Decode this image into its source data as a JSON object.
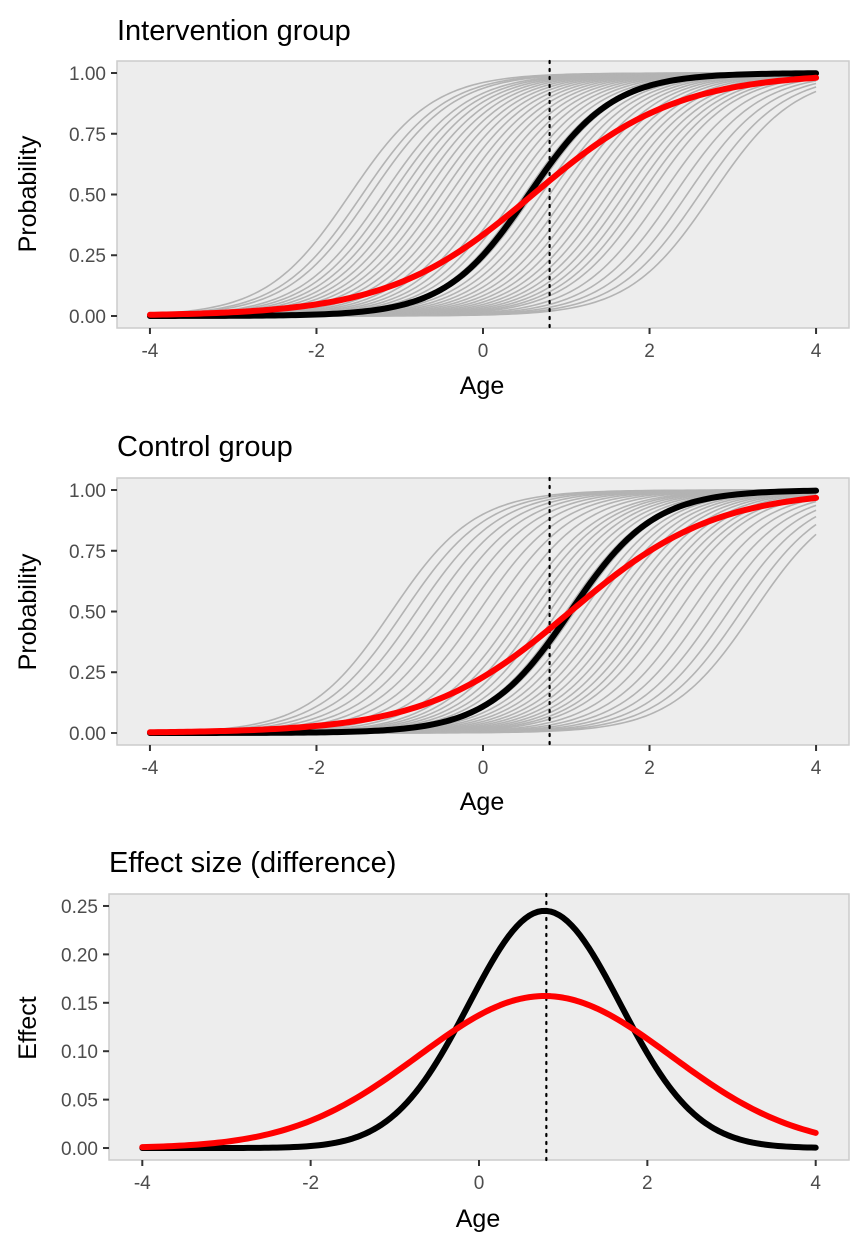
{
  "colors": {
    "panel_background": "#ededed",
    "ensemble": "#b3b3b3",
    "black_series": "#000000",
    "red_series": "#ff0000",
    "reference_line": "#000000"
  },
  "chart_data": [
    {
      "type": "line",
      "title": "Intervention group",
      "xlabel": "Age",
      "ylabel": "Probability",
      "xlim": [
        -4,
        4
      ],
      "ylim": [
        0,
        1
      ],
      "x_ticks": [
        -4,
        -2,
        0,
        2,
        4
      ],
      "x_tick_labels": [
        "-4",
        "-2",
        "0",
        "2",
        "4"
      ],
      "y_ticks": [
        0,
        0.25,
        0.5,
        0.75,
        1
      ],
      "y_tick_labels": [
        "0.00",
        "0.25",
        "0.50",
        "0.75",
        "1.00"
      ],
      "reference_x": 0.8,
      "grid": false,
      "curve": "logistic",
      "series": [
        {
          "role": "black",
          "center": 0.55,
          "slope": 2.0
        },
        {
          "role": "red",
          "center": 0.6,
          "slope": 1.15
        }
      ],
      "ensemble": {
        "slope": 2.0,
        "centers": [
          -1.6,
          -1.45,
          -1.35,
          -1.2,
          -1.1,
          -1.0,
          -0.9,
          -0.8,
          -0.7,
          -0.6,
          -0.5,
          -0.4,
          -0.3,
          -0.2,
          -0.1,
          0.0,
          0.1,
          0.2,
          0.3,
          0.4,
          0.5,
          0.6,
          0.7,
          0.8,
          0.9,
          1.0,
          1.1,
          1.2,
          1.3,
          1.4,
          1.5,
          1.6,
          1.7,
          1.8,
          1.9,
          2.0,
          2.15,
          2.3,
          2.45,
          2.6,
          2.75
        ]
      }
    },
    {
      "type": "line",
      "title": "Control group",
      "xlabel": "Age",
      "ylabel": "Probability",
      "xlim": [
        -4,
        4
      ],
      "ylim": [
        0,
        1
      ],
      "x_ticks": [
        -4,
        -2,
        0,
        2,
        4
      ],
      "x_tick_labels": [
        "-4",
        "-2",
        "0",
        "2",
        "4"
      ],
      "y_ticks": [
        0,
        0.25,
        0.5,
        0.75,
        1
      ],
      "y_tick_labels": [
        "0.00",
        "0.25",
        "0.50",
        "0.75",
        "1.00"
      ],
      "reference_x": 0.8,
      "grid": false,
      "curve": "logistic",
      "series": [
        {
          "role": "black",
          "center": 1.05,
          "slope": 2.0
        },
        {
          "role": "red",
          "center": 1.05,
          "slope": 1.15
        }
      ],
      "ensemble": {
        "slope": 2.0,
        "centers": [
          -1.1,
          -0.95,
          -0.8,
          -0.65,
          -0.5,
          -0.35,
          -0.2,
          -0.05,
          0.1,
          0.25,
          0.4,
          0.5,
          0.6,
          0.7,
          0.8,
          0.9,
          1.0,
          1.1,
          1.2,
          1.3,
          1.4,
          1.5,
          1.6,
          1.7,
          1.8,
          1.9,
          2.0,
          2.1,
          2.2,
          2.35,
          2.5,
          2.65,
          2.8,
          2.95,
          3.1,
          3.25
        ]
      }
    },
    {
      "type": "line",
      "title": "Effect size (difference)",
      "xlabel": "Age",
      "ylabel": "Effect",
      "xlim": [
        -4,
        4
      ],
      "ylim": [
        0,
        0.25
      ],
      "x_ticks": [
        -4,
        -2,
        0,
        2,
        4
      ],
      "x_tick_labels": [
        "-4",
        "-2",
        "0",
        "2",
        "4"
      ],
      "y_ticks": [
        0,
        0.05,
        0.1,
        0.15,
        0.2,
        0.25
      ],
      "y_tick_labels": [
        "0.00",
        "0.05",
        "0.10",
        "0.15",
        "0.20",
        "0.25"
      ],
      "reference_x": 0.8,
      "grid": false,
      "curve": "bell",
      "series": [
        {
          "role": "black",
          "peak_x": 0.78,
          "peak": 0.245,
          "width": 0.9
        },
        {
          "role": "red",
          "peak_x": 0.78,
          "peak": 0.157,
          "width": 1.5
        }
      ]
    }
  ]
}
